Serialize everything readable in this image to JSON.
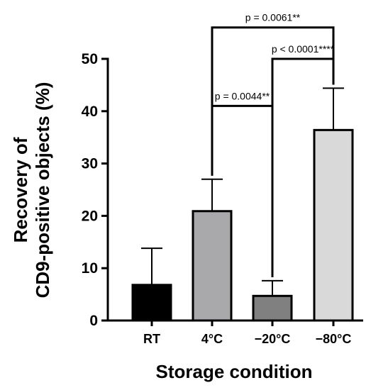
{
  "chart_data": {
    "type": "bar",
    "categories": [
      "RT",
      "4°C",
      "−20°C",
      "−80°C"
    ],
    "values": [
      6.8,
      20.9,
      4.7,
      36.4
    ],
    "error_upper": [
      13.8,
      27.0,
      7.6,
      44.4
    ],
    "bar_colors": [
      "#000000",
      "#a9a9ab",
      "#808080",
      "#d9d9d9"
    ],
    "xlabel": "Storage condition",
    "ylabel_lines": [
      "Recovery of",
      "CD9-positive objects (%)"
    ],
    "ylim": [
      0,
      50
    ],
    "yticks": [
      0,
      10,
      20,
      30,
      40,
      50
    ],
    "significance": [
      {
        "from": 1,
        "to": 3,
        "label": "p = 0.0061**",
        "level": 56
      },
      {
        "from": 2,
        "to": 3,
        "label": "p < 0.0001****",
        "level": 50
      },
      {
        "from": 1,
        "to": 2,
        "label": "p = 0.0044**",
        "level": 41
      }
    ],
    "grid": false
  }
}
